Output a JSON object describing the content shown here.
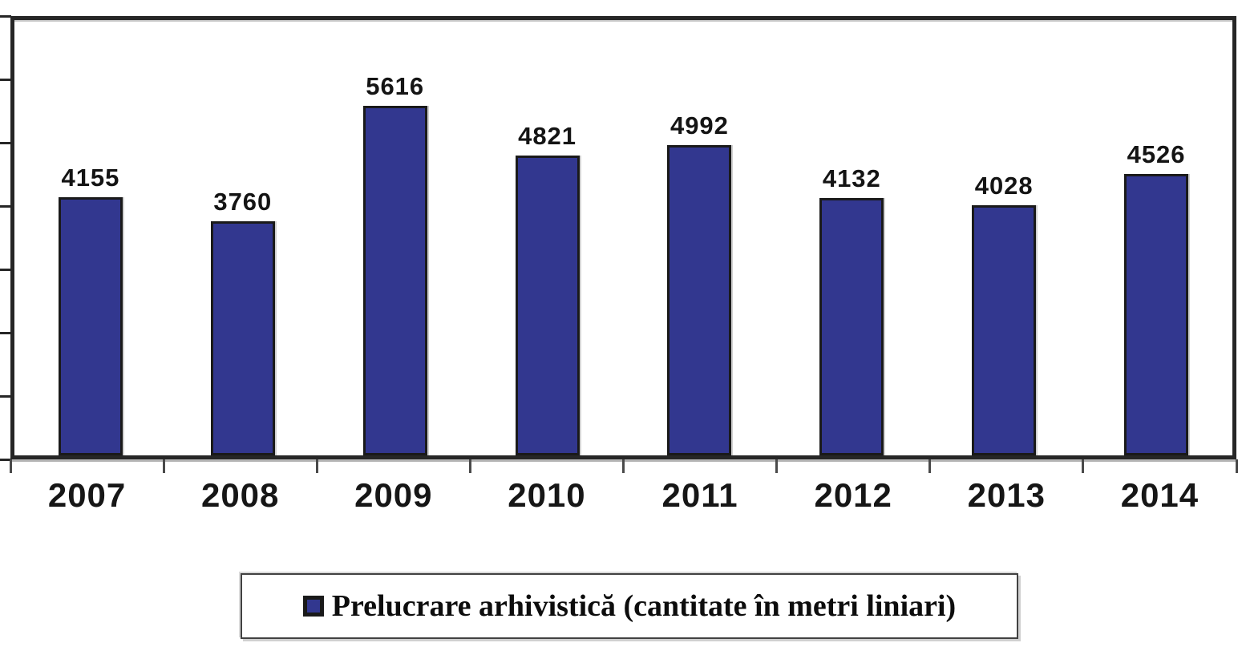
{
  "chart_data": {
    "type": "bar",
    "categories": [
      "2007",
      "2008",
      "2009",
      "2010",
      "2011",
      "2012",
      "2013",
      "2014"
    ],
    "values": [
      4155,
      3760,
      5616,
      4821,
      4992,
      4132,
      4028,
      4526
    ],
    "series_label": "Prelucrare arhivistică (cantitate în metri liniari)",
    "title": "",
    "xlabel": "",
    "ylabel": "",
    "ylim": [
      0,
      7000
    ],
    "y_tick_interval": 1000,
    "y_tick_labels_visible": false,
    "grid": false,
    "legend_position": "bottom-center",
    "bar_color": "#32378F",
    "bar_border_color": "#1A1A1A",
    "axis_color": "#262626",
    "label_color": "#141414"
  }
}
